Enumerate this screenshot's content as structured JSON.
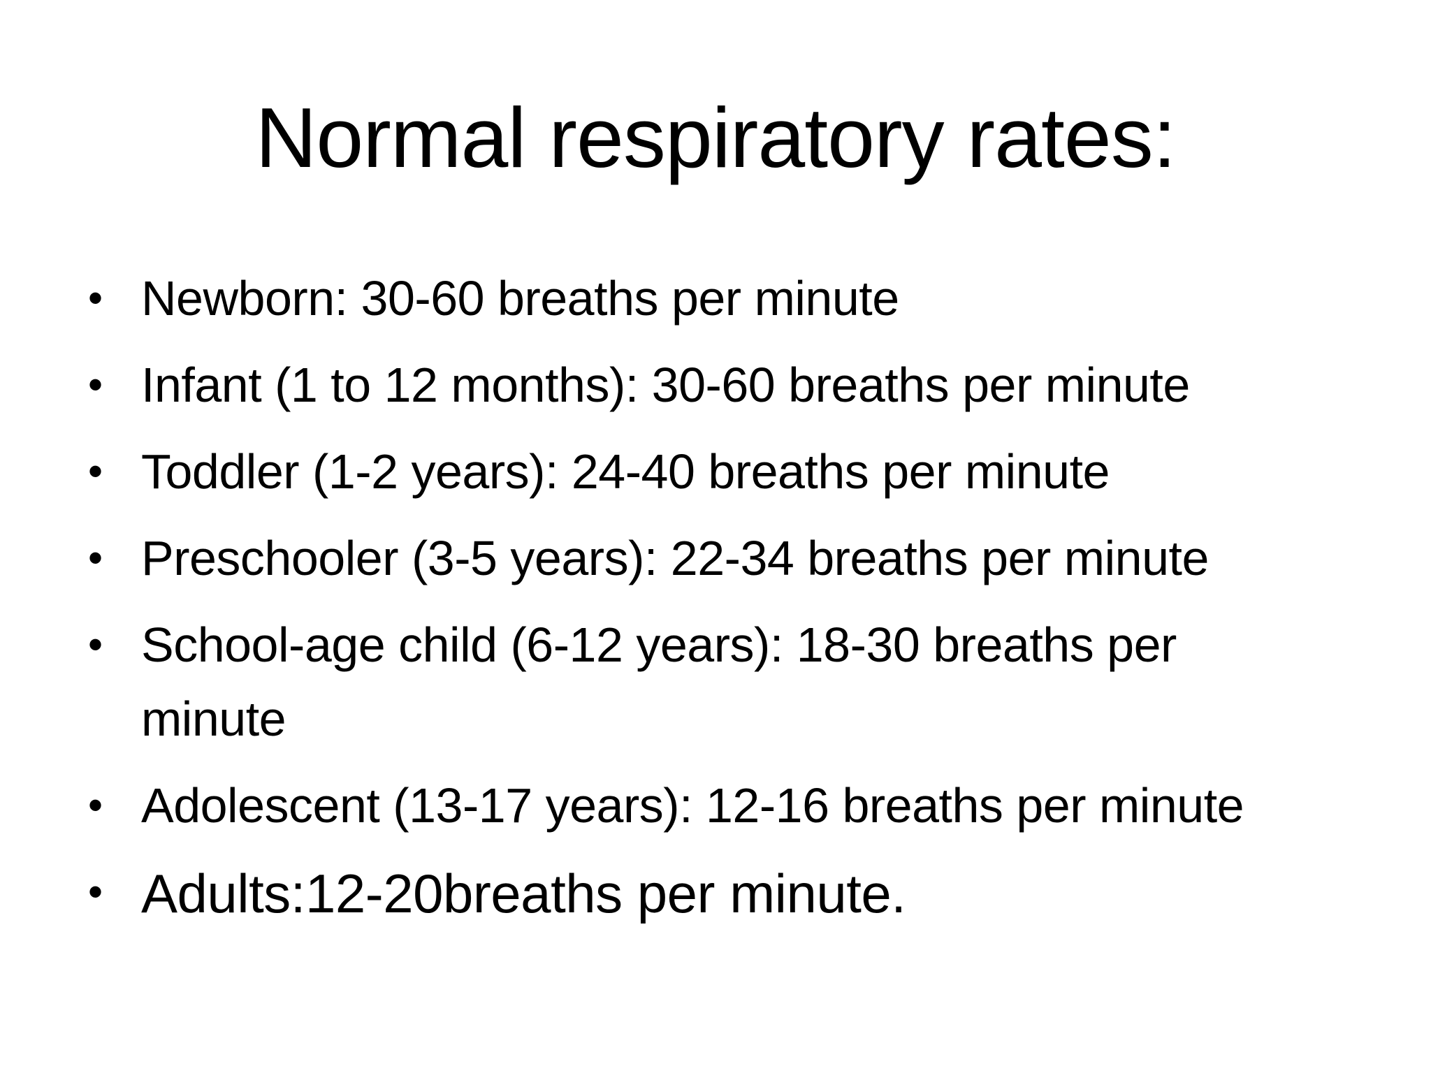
{
  "slide": {
    "title": "Normal respiratory rates:",
    "bullets": [
      "Newborn: 30-60 breaths per minute",
      "Infant (1 to 12 months): 30-60 breaths per minute",
      "Toddler (1-2 years): 24-40 breaths per minute",
      "Preschooler (3-5 years): 22-34 breaths per minute",
      "School-age child (6-12 years): 18-30 breaths per minute",
      "Adolescent (13-17 years): 12-16 breaths per minute",
      "Adults:12-20breaths per minute."
    ],
    "bullet_symbol": "•"
  }
}
